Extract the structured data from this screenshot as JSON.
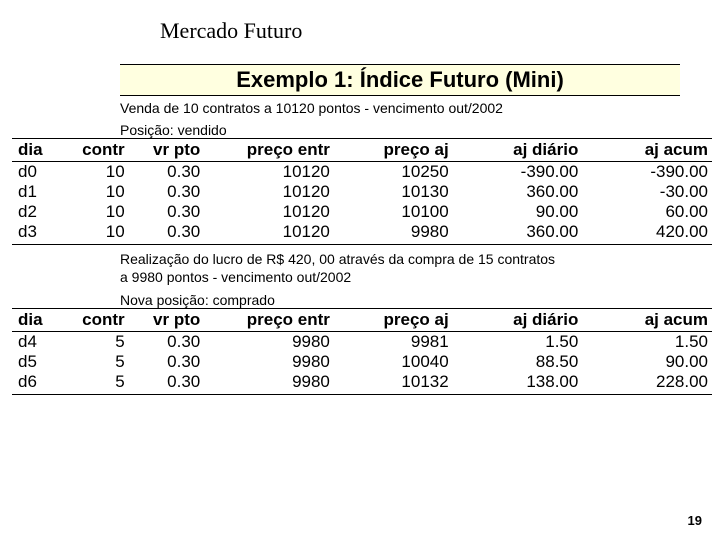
{
  "page_title": "Mercado Futuro",
  "example_title": "Exemplo 1: Índice Futuro (Mini)",
  "desc1": "Venda de 10 contratos a 10120 pontos - vencimento out/2002",
  "pos1": "Posição: vendido",
  "table1": {
    "headers": [
      "dia",
      "contr",
      "vr pto",
      "preço entr",
      "preço aj",
      "aj diário",
      "aj acum"
    ],
    "rows": [
      [
        "d0",
        "10",
        "0.30",
        "10120",
        "10250",
        "-390.00",
        "-390.00"
      ],
      [
        "d1",
        "10",
        "0.30",
        "10120",
        "10130",
        "360.00",
        "-30.00"
      ],
      [
        "d2",
        "10",
        "0.30",
        "10120",
        "10100",
        "90.00",
        "60.00"
      ],
      [
        "d3",
        "10",
        "0.30",
        "10120",
        "9980",
        "360.00",
        "420.00"
      ]
    ]
  },
  "note_line1": "Realização do lucro de R$ 420, 00 através da compra de 15 contratos",
  "note_line2": "a 9980 pontos - vencimento out/2002",
  "pos2": "Nova posição: comprado",
  "table2": {
    "headers": [
      "dia",
      "contr",
      "vr pto",
      "preço entr",
      "preço aj",
      "aj diário",
      "aj acum"
    ],
    "rows": [
      [
        "d4",
        "5",
        "0.30",
        "9980",
        "9981",
        "1.50",
        "1.50"
      ],
      [
        "d5",
        "5",
        "0.30",
        "9980",
        "10040",
        "88.50",
        "90.00"
      ],
      [
        "d6",
        "5",
        "0.30",
        "9980",
        "10132",
        "138.00",
        "228.00"
      ]
    ]
  },
  "page_number": "19"
}
